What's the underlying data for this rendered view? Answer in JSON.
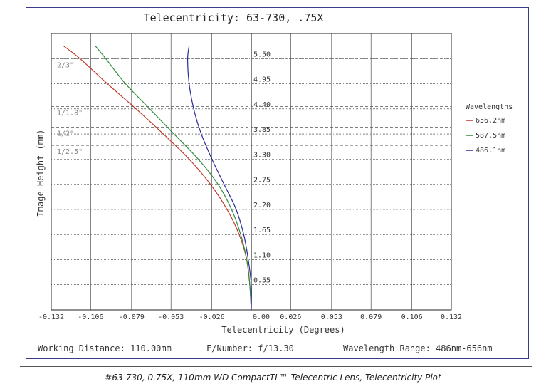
{
  "chart_data": {
    "type": "line",
    "title": "Telecentricity: 63-730, .75X",
    "xlabel": "Telecentricity (Degrees)",
    "ylabel": "Image Height (mm)",
    "xlim": [
      -0.132,
      0.132
    ],
    "ylim": [
      0,
      6.05
    ],
    "x_ticks": [
      "-0.132",
      "-0.106",
      "-0.079",
      "-0.053",
      "-0.026",
      "0.00",
      "0.026",
      "0.053",
      "0.079",
      "0.106",
      "0.132"
    ],
    "x_tick_values": [
      -0.132,
      -0.106,
      -0.079,
      -0.053,
      -0.026,
      0.0,
      0.026,
      0.053,
      0.079,
      0.106,
      0.132
    ],
    "y_ticks": [
      "0.55",
      "1.10",
      "1.65",
      "2.20",
      "2.75",
      "3.30",
      "3.85",
      "4.40",
      "4.95",
      "5.50"
    ],
    "y_tick_values": [
      0.55,
      1.1,
      1.65,
      2.2,
      2.75,
      3.3,
      3.85,
      4.4,
      4.95,
      5.5
    ],
    "sensor_lines": [
      {
        "label": "2/3\"",
        "y": 5.5
      },
      {
        "label": "1/1.8\"",
        "y": 4.45
      },
      {
        "label": "1/2\"",
        "y": 4.0
      },
      {
        "label": "1/2.5\"",
        "y": 3.6
      }
    ],
    "legend_title": "Wavelengths",
    "legend_placement": "right",
    "grid": true,
    "series": [
      {
        "name": "656.2nm",
        "color": "#c0392b",
        "points": [
          [
            0,
            0
          ],
          [
            -0.001,
            0.55
          ],
          [
            -0.003,
            1.1
          ],
          [
            -0.008,
            1.65
          ],
          [
            -0.016,
            2.2
          ],
          [
            -0.027,
            2.75
          ],
          [
            -0.041,
            3.3
          ],
          [
            -0.058,
            3.85
          ],
          [
            -0.076,
            4.4
          ],
          [
            -0.095,
            4.95
          ],
          [
            -0.113,
            5.5
          ],
          [
            -0.124,
            5.78
          ]
        ]
      },
      {
        "name": "587.5nm",
        "color": "#2e8b3a",
        "points": [
          [
            0,
            0
          ],
          [
            -0.001,
            0.55
          ],
          [
            -0.003,
            1.1
          ],
          [
            -0.007,
            1.65
          ],
          [
            -0.013,
            2.2
          ],
          [
            -0.022,
            2.75
          ],
          [
            -0.035,
            3.3
          ],
          [
            -0.051,
            3.85
          ],
          [
            -0.067,
            4.4
          ],
          [
            -0.083,
            4.95
          ],
          [
            -0.096,
            5.5
          ],
          [
            -0.103,
            5.78
          ]
        ]
      },
      {
        "name": "486.1nm",
        "color": "#2a2a9a",
        "points": [
          [
            0,
            0
          ],
          [
            0,
            0.55
          ],
          [
            -0.002,
            1.1
          ],
          [
            -0.005,
            1.65
          ],
          [
            -0.01,
            2.2
          ],
          [
            -0.018,
            2.75
          ],
          [
            -0.026,
            3.3
          ],
          [
            -0.033,
            3.85
          ],
          [
            -0.038,
            4.4
          ],
          [
            -0.041,
            4.95
          ],
          [
            -0.042,
            5.5
          ],
          [
            -0.041,
            5.78
          ]
        ]
      }
    ]
  },
  "footer": {
    "working_distance": "Working Distance: 110.00mm",
    "f_number": "F/Number: f/13.30",
    "wavelength_range": "Wavelength Range: 486nm-656nm"
  },
  "caption": "#63-730, 0.75X, 110mm WD CompactTL™ Telecentric Lens, Telecentricity Plot"
}
